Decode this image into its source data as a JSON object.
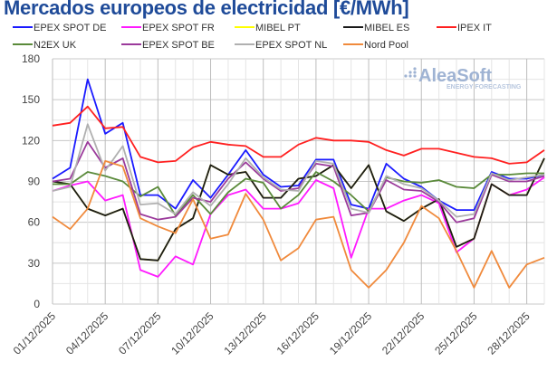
{
  "chart_data": {
    "type": "line",
    "title": "Mercados europeos de electricidad [€/MWh]",
    "xlabel": "",
    "ylabel": "",
    "ylim": [
      0,
      180
    ],
    "yticks": [
      "0",
      "30",
      "60",
      "90",
      "120",
      "150",
      "180"
    ],
    "grid": true,
    "legend_placement": "top",
    "watermark": {
      "brand": "AleaSoft",
      "tagline": "ENERGY FORECASTING"
    },
    "x": [
      "01/12/2025",
      "02/12/2025",
      "03/12/2025",
      "04/12/2025",
      "05/12/2025",
      "06/12/2025",
      "07/12/2025",
      "08/12/2025",
      "09/12/2025",
      "10/12/2025",
      "11/12/2025",
      "12/12/2025",
      "13/12/2025",
      "14/12/2025",
      "15/12/2025",
      "16/12/2025",
      "17/12/2025",
      "18/12/2025",
      "19/12/2025",
      "20/12/2025",
      "21/12/2025",
      "22/12/2025",
      "23/12/2025",
      "24/12/2025",
      "25/12/2025",
      "26/12/2025",
      "27/12/2025",
      "28/12/2025",
      "29/12/2025"
    ],
    "xtick_labels": [
      "01/12/2025",
      "04/12/2025",
      "07/12/2025",
      "10/12/2025",
      "13/12/2025",
      "16/12/2025",
      "19/12/2025",
      "22/12/2025",
      "25/12/2025",
      "28/12/2025"
    ],
    "series": [
      {
        "name": "EPEX SPOT DE",
        "color": "#1a1aff",
        "values": [
          92,
          100,
          165,
          125,
          133,
          80,
          80,
          70,
          91,
          78,
          95,
          113,
          95,
          86,
          87,
          106,
          106,
          73,
          70,
          103,
          92,
          86,
          76,
          69,
          69,
          97,
          92,
          92,
          95
        ]
      },
      {
        "name": "EPEX SPOT FR",
        "color": "#ff1aff",
        "values": [
          83,
          87,
          90,
          76,
          80,
          25,
          20,
          35,
          29,
          66,
          80,
          84,
          70,
          70,
          74,
          91,
          85,
          34,
          70,
          70,
          76,
          80,
          74,
          38,
          48,
          88,
          80,
          84,
          93
        ]
      },
      {
        "name": "MIBEL PT",
        "color": "#ffff00",
        "values": [
          90,
          88,
          70,
          65,
          70,
          33,
          32,
          55,
          63,
          102,
          95,
          97,
          78,
          78,
          92,
          94,
          102,
          85,
          102,
          68,
          61,
          70,
          77,
          42,
          48,
          88,
          80,
          80,
          107
        ]
      },
      {
        "name": "MIBEL ES",
        "color": "#1a1a1a",
        "values": [
          90,
          88,
          70,
          65,
          70,
          33,
          32,
          55,
          63,
          102,
          95,
          97,
          78,
          78,
          92,
          94,
          102,
          85,
          102,
          68,
          61,
          70,
          77,
          42,
          48,
          88,
          80,
          80,
          107
        ]
      },
      {
        "name": "IPEX IT",
        "color": "#ff2020",
        "values": [
          131,
          133,
          145,
          129,
          130,
          108,
          104,
          105,
          115,
          119,
          117,
          116,
          108,
          108,
          117,
          122,
          120,
          120,
          119,
          113,
          109,
          114,
          114,
          111,
          108,
          107,
          103,
          104,
          113
        ]
      },
      {
        "name": "N2EX UK",
        "color": "#5a8a3a",
        "values": [
          88,
          88,
          97,
          94,
          90,
          79,
          86,
          65,
          80,
          66,
          82,
          92,
          89,
          70,
          80,
          97,
          90,
          80,
          68,
          93,
          90,
          89,
          91,
          86,
          85,
          95,
          95,
          96,
          96
        ]
      },
      {
        "name": "EPEX SPOT BE",
        "color": "#9b3a9b",
        "values": [
          90,
          92,
          119,
          100,
          107,
          66,
          62,
          64,
          78,
          75,
          92,
          104,
          92,
          83,
          85,
          103,
          101,
          65,
          67,
          91,
          84,
          83,
          75,
          60,
          63,
          95,
          90,
          90,
          94
        ]
      },
      {
        "name": "EPEX SPOT NL",
        "color": "#b0b0b0",
        "values": [
          83,
          86,
          132,
          98,
          116,
          73,
          74,
          66,
          82,
          72,
          88,
          107,
          93,
          84,
          83,
          105,
          103,
          70,
          67,
          94,
          88,
          85,
          76,
          64,
          66,
          96,
          91,
          93,
          95
        ]
      },
      {
        "name": "Nord Pool",
        "color": "#f08a3c",
        "values": [
          64,
          55,
          70,
          105,
          101,
          63,
          57,
          52,
          77,
          48,
          51,
          81,
          62,
          32,
          41,
          62,
          64,
          25,
          12,
          25,
          45,
          72,
          63,
          39,
          12,
          39,
          12,
          29,
          34
        ]
      }
    ]
  }
}
